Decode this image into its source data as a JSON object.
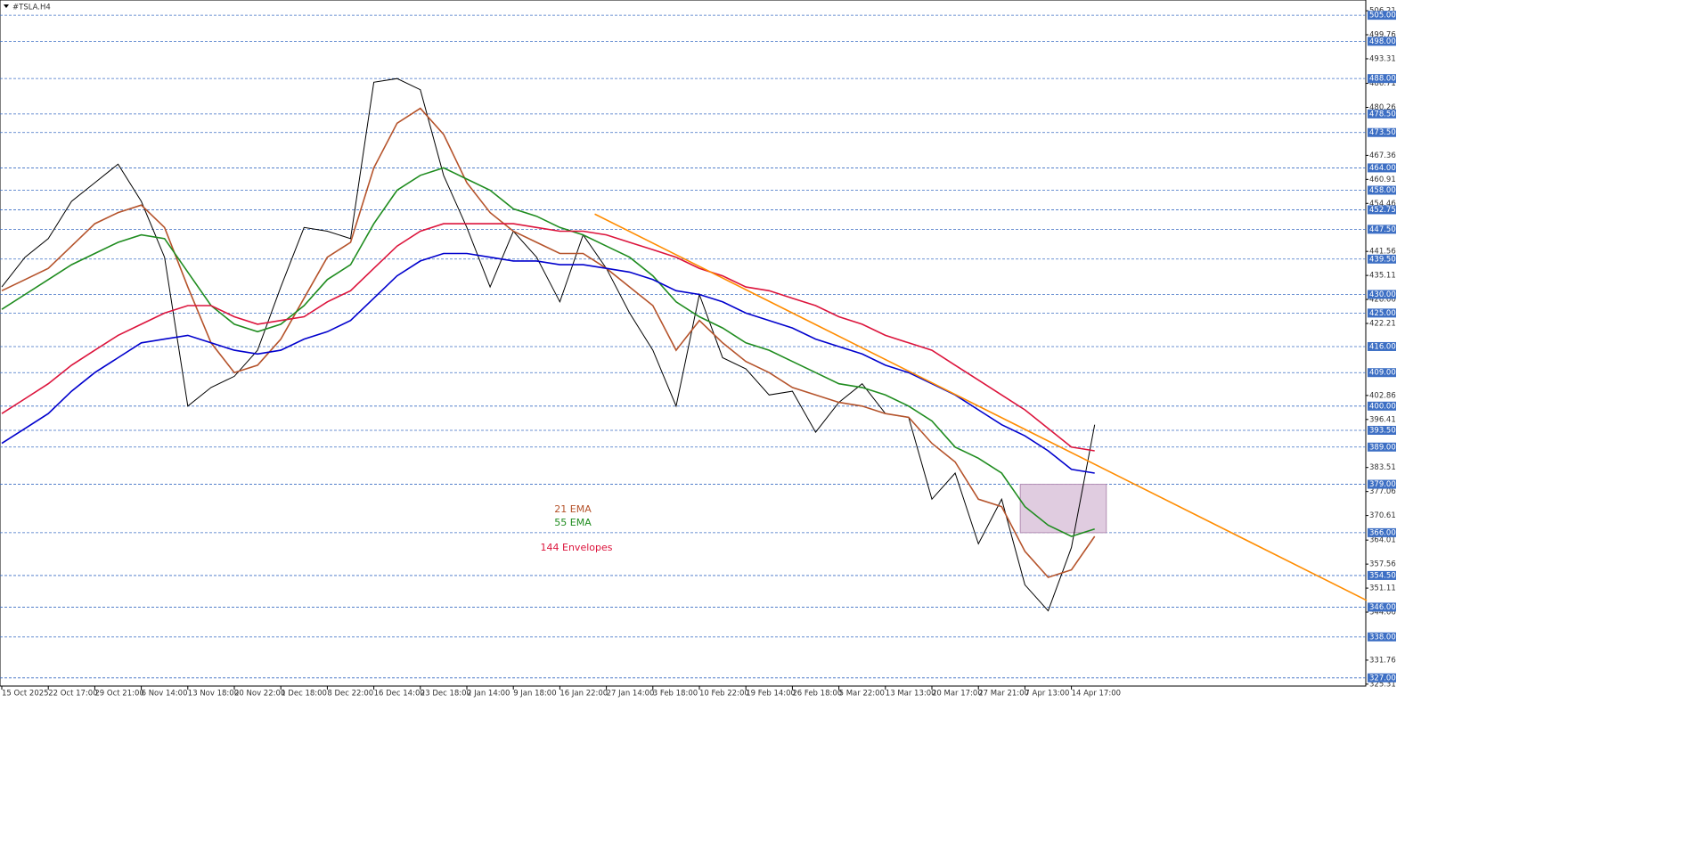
{
  "chart_data": {
    "type": "line",
    "title": "#TSLA.H4",
    "categories": [
      "15 Oct 2025",
      null,
      "22 Oct 17:00",
      null,
      "29 Oct 21:00",
      null,
      "6 Nov 14:00",
      null,
      "13 Nov 18:00",
      null,
      "20 Nov 22:00",
      null,
      "1 Dec 18:00",
      null,
      "8 Dec 22:00",
      null,
      "16 Dec 14:00",
      null,
      "23 Dec 18:00",
      null,
      "2 Jan 14:00",
      null,
      "9 Jan 18:00",
      null,
      "16 Jan 22:00",
      null,
      "27 Jan 14:00",
      null,
      "3 Feb 18:00",
      null,
      "10 Feb 22:00",
      null,
      "19 Feb 14:00",
      null,
      "26 Feb 18:00",
      null,
      "5 Mar 22:00",
      null,
      "13 Mar 13:00",
      null,
      "20 Mar 17:00",
      null,
      "27 Mar 21:00",
      null,
      "7 Apr 13:00",
      null,
      "14 Apr 17:00",
      null
    ],
    "series": [
      {
        "color": "#000000",
        "values": [
          432,
          440,
          445,
          455,
          460,
          465,
          455,
          440,
          400,
          405,
          408,
          415,
          432,
          448,
          447,
          445,
          487,
          488,
          485,
          462,
          448,
          432,
          447,
          440,
          428,
          446,
          437,
          425,
          415,
          400,
          430,
          413,
          410,
          403,
          404,
          393,
          401,
          406,
          398,
          397,
          375,
          382,
          363,
          375,
          352,
          345,
          362,
          395
        ]
      },
      {
        "name": "21 EMA",
        "color": "#b5532b",
        "values": [
          431,
          434,
          437,
          443,
          449,
          452,
          454,
          448,
          432,
          417,
          409,
          411,
          418,
          429,
          440,
          444,
          464,
          476,
          480,
          473,
          460,
          452,
          447,
          444,
          441,
          441,
          437,
          432,
          427,
          415,
          423,
          417,
          412,
          409,
          405,
          403,
          401,
          400,
          398,
          397,
          390,
          385,
          375,
          373,
          361,
          354,
          356,
          365
        ]
      },
      {
        "name": "55 EMA",
        "color": "#1f8c1f",
        "values": [
          426,
          430,
          434,
          438,
          441,
          444,
          446,
          445,
          436,
          427,
          422,
          420,
          422,
          427,
          434,
          438,
          449,
          458,
          462,
          464,
          461,
          458,
          453,
          451,
          448,
          446,
          443,
          440,
          435,
          428,
          424,
          421,
          417,
          415,
          412,
          409,
          406,
          405,
          403,
          400,
          396,
          389,
          386,
          382,
          373,
          368,
          365,
          367
        ]
      },
      {
        "name": "144 Envelopes",
        "color": "#dc143c",
        "values": [
          398,
          402,
          406,
          411,
          415,
          419,
          422,
          425,
          427,
          427,
          424,
          422,
          423,
          424,
          428,
          431,
          437,
          443,
          447,
          449,
          449,
          449,
          449,
          448,
          447,
          447,
          446,
          444,
          442,
          440,
          437,
          435,
          432,
          431,
          429,
          427,
          424,
          422,
          419,
          417,
          415,
          411,
          407,
          403,
          399,
          394,
          389,
          388
        ]
      },
      {
        "color": "#0000cd",
        "values": [
          390,
          394,
          398,
          404,
          409,
          413,
          417,
          418,
          419,
          417,
          415,
          414,
          415,
          418,
          420,
          423,
          429,
          435,
          439,
          441,
          441,
          440,
          439,
          439,
          438,
          438,
          437,
          436,
          434,
          431,
          430,
          428,
          425,
          423,
          421,
          418,
          416,
          414,
          411,
          409,
          406,
          403,
          399,
          395,
          392,
          388,
          383,
          382
        ]
      }
    ],
    "ylim": [
      324.8,
      509.1
    ],
    "yticks": [
      506.21,
      499.76,
      493.31,
      486.71,
      480.26,
      467.36,
      460.91,
      454.46,
      441.56,
      435.11,
      428.66,
      422.21,
      402.86,
      396.41,
      383.51,
      377.06,
      370.61,
      364.01,
      357.56,
      351.11,
      344.66,
      331.76,
      325.31
    ],
    "levels": [
      {
        "value": 505,
        "label": "505.00"
      },
      {
        "value": 498,
        "label": "498.00"
      },
      {
        "value": 488,
        "label": "488.00"
      },
      {
        "value": 478.5,
        "label": "478.50"
      },
      {
        "value": 473.5,
        "label": "473.50"
      },
      {
        "value": 464,
        "label": "464.00"
      },
      {
        "value": 458,
        "label": "458.00"
      },
      {
        "value": 452.75,
        "label": "452.75"
      },
      {
        "value": 447.5,
        "label": "447.50"
      },
      {
        "value": 439.5,
        "label": "439.50"
      },
      {
        "value": 430,
        "label": "430.00"
      },
      {
        "value": 425,
        "label": "425.00"
      },
      {
        "value": 416,
        "label": "416.00"
      },
      {
        "value": 409,
        "label": "409.00"
      },
      {
        "value": 400,
        "label": "400.00"
      },
      {
        "value": 393.5,
        "label": "393.50"
      },
      {
        "value": 389,
        "label": "389.00"
      },
      {
        "value": 379,
        "label": "379.00"
      },
      {
        "value": 366,
        "label": "366.00"
      },
      {
        "value": 354.5,
        "label": "354.50"
      },
      {
        "value": 346,
        "label": "346.00"
      },
      {
        "value": 338,
        "label": "338.00"
      },
      {
        "value": 327,
        "label": "327.00"
      }
    ],
    "level_color": "#3d6fc4",
    "trendline": {
      "color": "#ff8c00",
      "x": [
        25.5,
        58.7
      ],
      "values": [
        451.6,
        347.8
      ]
    },
    "zone": {
      "color": "#d8bfd8",
      "x": [
        43.8,
        47.5
      ],
      "values": [
        366,
        379
      ]
    }
  }
}
